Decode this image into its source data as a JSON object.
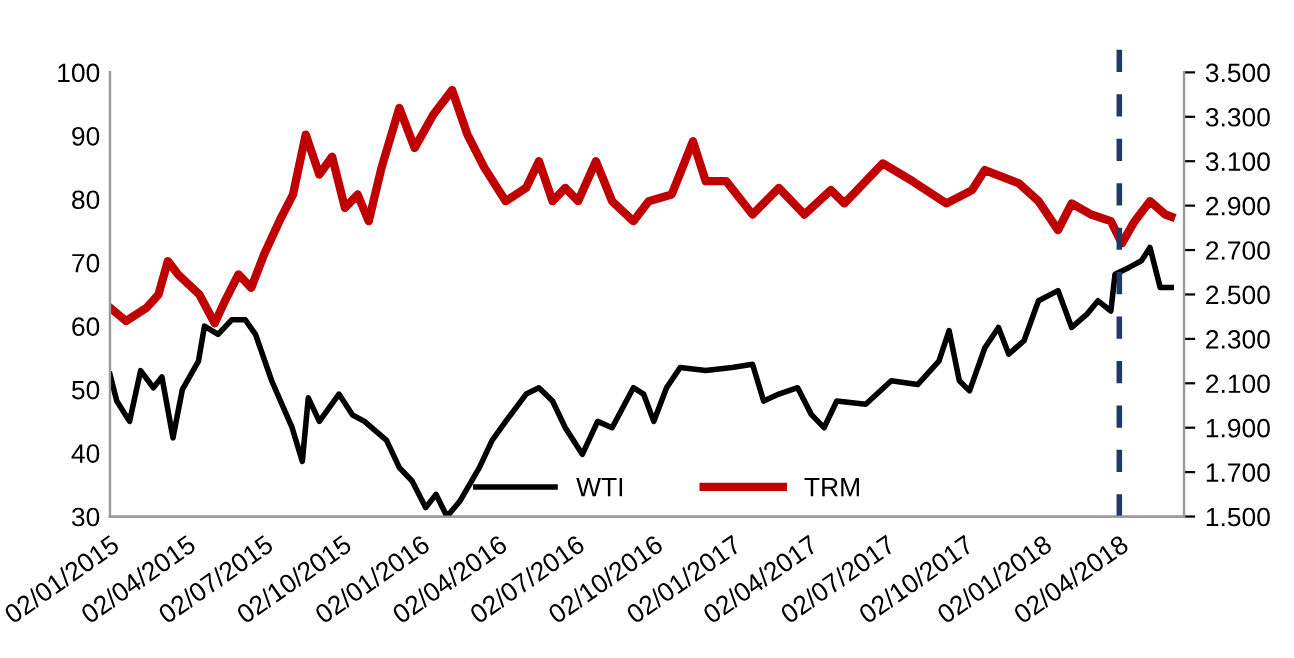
{
  "chart_data": {
    "type": "line",
    "legend": "bottom",
    "grid": false,
    "marker": "none",
    "line_style": "solid",
    "xlim": [
      "2015-01-02",
      "2018-06-17"
    ],
    "xticks": [
      {
        "value": "2015-01-02",
        "label": "02/01/2015"
      },
      {
        "value": "2015-04-02",
        "label": "02/04/2015"
      },
      {
        "value": "2015-07-02",
        "label": "02/07/2015"
      },
      {
        "value": "2015-10-02",
        "label": "02/10/2015"
      },
      {
        "value": "2016-01-02",
        "label": "02/01/2016"
      },
      {
        "value": "2016-04-02",
        "label": "02/04/2016"
      },
      {
        "value": "2016-07-02",
        "label": "02/07/2016"
      },
      {
        "value": "2016-10-02",
        "label": "02/10/2016"
      },
      {
        "value": "2017-01-02",
        "label": "02/01/2017"
      },
      {
        "value": "2017-04-02",
        "label": "02/04/2017"
      },
      {
        "value": "2017-07-02",
        "label": "02/07/2017"
      },
      {
        "value": "2017-10-02",
        "label": "02/10/2017"
      },
      {
        "value": "2018-01-02",
        "label": "02/01/2018"
      },
      {
        "value": "2018-04-02",
        "label": "02/04/2018"
      }
    ],
    "ylim": [
      30,
      100
    ],
    "yticks": [
      30,
      40,
      50,
      60,
      70,
      80,
      90,
      100
    ],
    "y2lim": [
      1500,
      3500
    ],
    "y2ticks": [
      {
        "value": 1500,
        "label": "1.500"
      },
      {
        "value": 1700,
        "label": "1.700"
      },
      {
        "value": 1900,
        "label": "1.900"
      },
      {
        "value": 2100,
        "label": "2.100"
      },
      {
        "value": 2300,
        "label": "2.300"
      },
      {
        "value": 2500,
        "label": "2.500"
      },
      {
        "value": 2700,
        "label": "2.700"
      },
      {
        "value": 2900,
        "label": "2.900"
      },
      {
        "value": 3100,
        "label": "3.100"
      },
      {
        "value": 3300,
        "label": "3.300"
      },
      {
        "value": 3500,
        "label": "3.500"
      }
    ],
    "ref_lines": [
      {
        "axis": "x",
        "value": "2018-04-02",
        "color": "#1f3864",
        "line_style": "dashed"
      }
    ],
    "series": [
      {
        "name": "WTI",
        "color": "#000000",
        "x": [
          "2015-01-02",
          "2015-01-10",
          "2015-01-25",
          "2015-02-07",
          "2015-02-22",
          "2015-03-04",
          "2015-03-17",
          "2015-03-28",
          "2015-04-16",
          "2015-04-23",
          "2015-05-09",
          "2015-05-25",
          "2015-06-10",
          "2015-06-22",
          "2015-07-11",
          "2015-08-04",
          "2015-08-16",
          "2015-08-23",
          "2015-09-05",
          "2015-09-28",
          "2015-10-14",
          "2015-10-28",
          "2015-11-23",
          "2015-12-08",
          "2015-12-23",
          "2016-01-08",
          "2016-01-20",
          "2016-02-02",
          "2016-02-17",
          "2016-03-11",
          "2016-03-26",
          "2016-04-11",
          "2016-05-05",
          "2016-05-20",
          "2016-06-05",
          "2016-06-20",
          "2016-07-10",
          "2016-07-28",
          "2016-08-14",
          "2016-09-08",
          "2016-09-20",
          "2016-10-02",
          "2016-10-17",
          "2016-11-02",
          "2016-12-02",
          "2017-01-02",
          "2017-01-26",
          "2017-02-08",
          "2017-02-26",
          "2017-03-20",
          "2017-04-05",
          "2017-04-20",
          "2017-05-05",
          "2017-06-08",
          "2017-07-08",
          "2017-08-08",
          "2017-09-02",
          "2017-09-14",
          "2017-09-26",
          "2017-10-08",
          "2017-10-26",
          "2017-11-11",
          "2017-11-23",
          "2017-12-11",
          "2017-12-28",
          "2018-01-20",
          "2018-02-05",
          "2018-02-23",
          "2018-03-08",
          "2018-03-23",
          "2018-03-28",
          "2018-04-14",
          "2018-04-28",
          "2018-05-08",
          "2018-05-20",
          "2018-06-02"
        ],
        "values": [
          52.4,
          48.2,
          45,
          53,
          50.3,
          52,
          42.4,
          50,
          54.5,
          60,
          58.7,
          61,
          61,
          58.7,
          51.4,
          44,
          38.7,
          48.7,
          45,
          49.3,
          46,
          45,
          42,
          37.7,
          35.6,
          31.4,
          33.5,
          30,
          32.4,
          37.7,
          42,
          45,
          49.3,
          50.3,
          48.2,
          44,
          39.8,
          45,
          44,
          50.3,
          49.3,
          45,
          50.3,
          53.5,
          53,
          53.5,
          54,
          48.2,
          49.3,
          50.3,
          46.1,
          44,
          48.2,
          47.7,
          51.4,
          50.8,
          54.5,
          59.3,
          51.4,
          49.8,
          56.6,
          59.8,
          55.6,
          57.7,
          64,
          65.6,
          59.8,
          61.9,
          64,
          62.4,
          68.2,
          69.3,
          70.3,
          72.4,
          66.1,
          66.1
        ]
      },
      {
        "name": "TRM",
        "color": "#c00000",
        "axis": "y2",
        "x": [
          "2015-01-02",
          "2015-01-21",
          "2015-02-14",
          "2015-02-28",
          "2015-03-11",
          "2015-03-23",
          "2015-04-17",
          "2015-05-05",
          "2015-05-17",
          "2015-06-02",
          "2015-06-17",
          "2015-07-02",
          "2015-07-20",
          "2015-08-05",
          "2015-08-20",
          "2015-09-05",
          "2015-09-20",
          "2015-10-05",
          "2015-10-20",
          "2015-11-02",
          "2015-11-17",
          "2015-12-08",
          "2015-12-26",
          "2016-01-17",
          "2016-02-08",
          "2016-02-26",
          "2016-03-17",
          "2016-04-11",
          "2016-05-05",
          "2016-05-20",
          "2016-06-05",
          "2016-06-20",
          "2016-07-05",
          "2016-07-26",
          "2016-08-14",
          "2016-09-08",
          "2016-09-26",
          "2016-10-23",
          "2016-11-17",
          "2016-12-02",
          "2016-12-26",
          "2017-01-26",
          "2017-02-26",
          "2017-03-28",
          "2017-04-28",
          "2017-05-14",
          "2017-06-28",
          "2017-08-02",
          "2017-09-11",
          "2017-10-11",
          "2017-10-26",
          "2017-12-05",
          "2017-12-28",
          "2018-01-20",
          "2018-02-05",
          "2018-02-28",
          "2018-03-23",
          "2018-04-05",
          "2018-04-20",
          "2018-05-08",
          "2018-05-26",
          "2018-06-02"
        ],
        "values": [
          2440,
          2380,
          2440,
          2500,
          2650,
          2590,
          2500,
          2370,
          2470,
          2590,
          2530,
          2680,
          2830,
          2950,
          3220,
          3040,
          3120,
          2890,
          2950,
          2830,
          3070,
          3340,
          3160,
          3310,
          3420,
          3220,
          3070,
          2920,
          2980,
          3100,
          2920,
          2980,
          2920,
          3100,
          2920,
          2830,
          2920,
          2950,
          3190,
          3010,
          3010,
          2860,
          2980,
          2860,
          2970,
          2910,
          3090,
          3010,
          2910,
          2970,
          3060,
          3000,
          2920,
          2790,
          2910,
          2860,
          2830,
          2730,
          2830,
          2920,
          2860,
          2850
        ]
      }
    ]
  }
}
